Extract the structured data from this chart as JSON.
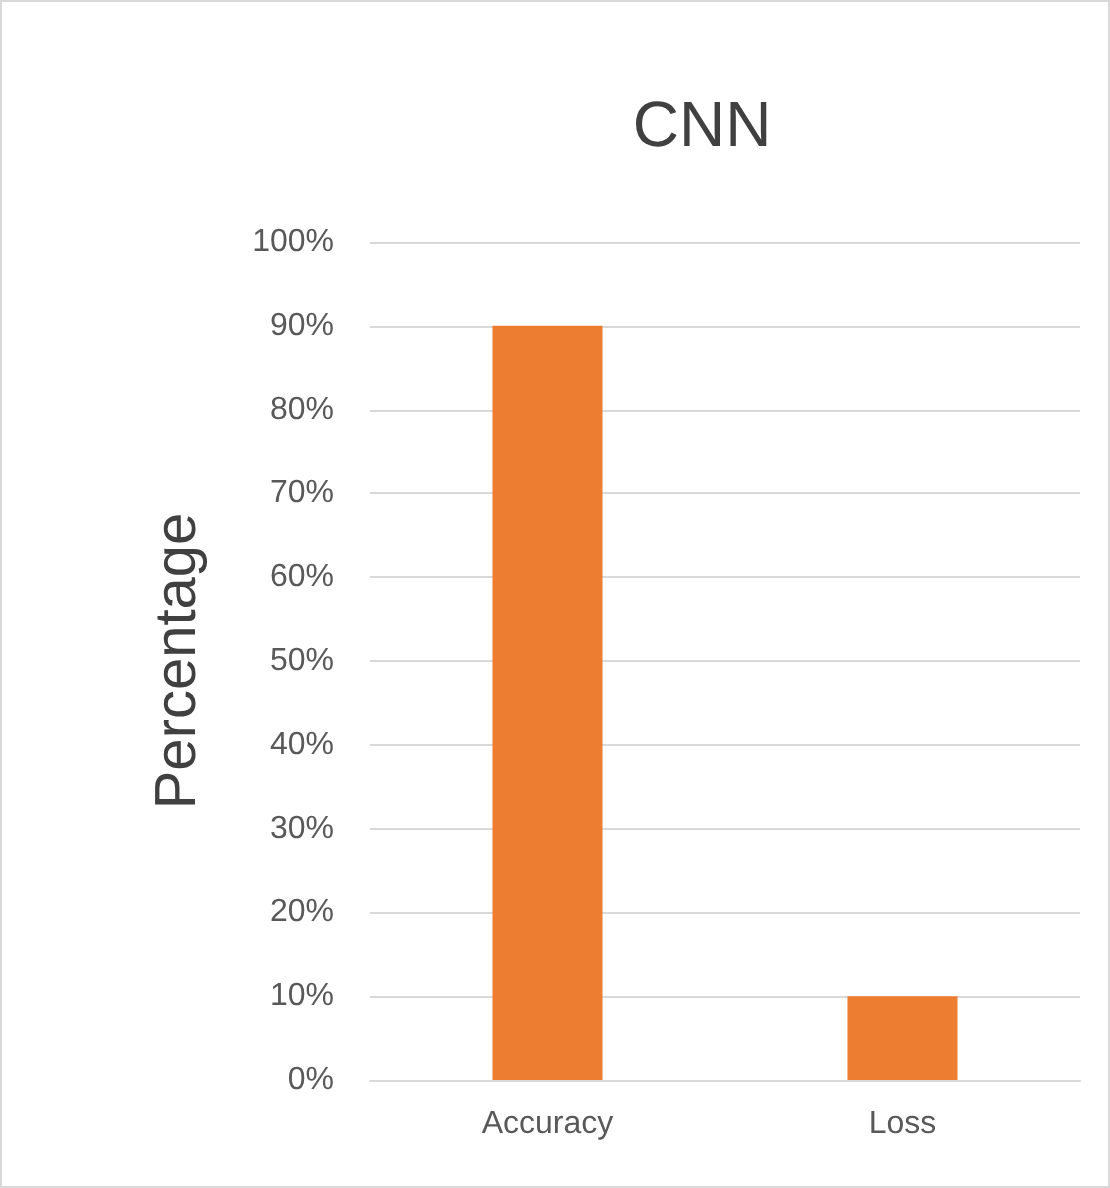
{
  "chart_data": {
    "type": "bar",
    "title": "CNN",
    "ylabel": "Percentage",
    "categories": [
      "Accuracy",
      "Loss"
    ],
    "values": [
      90,
      10
    ],
    "color": "#ed7d31",
    "ylim": [
      0,
      100
    ],
    "yticks": [
      {
        "value": 0,
        "label": "0%"
      },
      {
        "value": 10,
        "label": "10%"
      },
      {
        "value": 20,
        "label": "20%"
      },
      {
        "value": 30,
        "label": "30%"
      },
      {
        "value": 40,
        "label": "40%"
      },
      {
        "value": 50,
        "label": "50%"
      },
      {
        "value": 60,
        "label": "60%"
      },
      {
        "value": 70,
        "label": "70%"
      },
      {
        "value": 80,
        "label": "80%"
      },
      {
        "value": 90,
        "label": "90%"
      },
      {
        "value": 100,
        "label": "100%"
      }
    ],
    "grid": "y"
  }
}
